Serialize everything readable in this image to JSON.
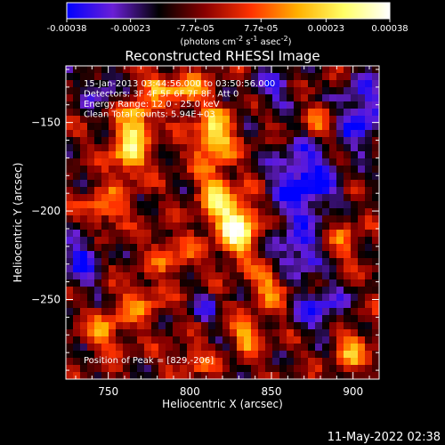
{
  "chart_data": {
    "type": "heatmap",
    "title": "Reconstructed RHESSI Image",
    "xlabel": "Heliocentric X (arcsec)",
    "ylabel": "Heliocentric Y (arcsec)",
    "xlim": [
      724,
      916
    ],
    "ylim": [
      -295,
      -118
    ],
    "x_ticks": [
      750,
      800,
      850,
      900
    ],
    "y_ticks": [
      -150,
      -200,
      -250
    ],
    "colorbar": {
      "ticks": [
        "-0.00038",
        "-0.00023",
        "-7.7e-05",
        "7.7e-05",
        "0.00023",
        "0.00038"
      ],
      "units": "(photons cm-2 s-1 asec-2)",
      "range": [
        -0.00038,
        0.00038
      ],
      "colormap": [
        "#0000ff",
        "#6a1fd6",
        "#000000",
        "#8a0000",
        "#ff3300",
        "#ffb000",
        "#ffff66",
        "#ffffff"
      ]
    },
    "info_lines": [
      "15-Jan-2013 03:44:56.000 to 03:50:56.000",
      "Detectors: 3F 4F 5F 6F 7F 8F, Att 0",
      "Energy Range: 12.0 - 25.0 keV",
      "Clean     Total counts: 5.94E+03"
    ],
    "peak_label": "Position of Peak = [829,-206]",
    "peak": {
      "x": 829,
      "y": -206,
      "value": 0.00038
    },
    "bright_features": [
      {
        "x": 829,
        "y": -208,
        "sx": 9,
        "sy": 12,
        "amp": 1.0
      },
      {
        "x": 815,
        "y": -158,
        "sx": 8,
        "sy": 10,
        "amp": 0.88
      },
      {
        "x": 768,
        "y": -148,
        "sx": 7,
        "sy": 8,
        "amp": 0.72
      },
      {
        "x": 762,
        "y": -168,
        "sx": 8,
        "sy": 10,
        "amp": 0.7
      },
      {
        "x": 815,
        "y": -190,
        "sx": 7,
        "sy": 10,
        "amp": 0.62
      },
      {
        "x": 798,
        "y": -132,
        "sx": 9,
        "sy": 7,
        "amp": 0.6
      },
      {
        "x": 780,
        "y": -128,
        "sx": 6,
        "sy": 5,
        "amp": 0.5
      },
      {
        "x": 850,
        "y": -242,
        "sx": 8,
        "sy": 8,
        "amp": 0.55
      },
      {
        "x": 835,
        "y": -270,
        "sx": 7,
        "sy": 7,
        "amp": 0.55
      },
      {
        "x": 745,
        "y": -200,
        "sx": 10,
        "sy": 9,
        "amp": 0.5
      },
      {
        "x": 770,
        "y": -252,
        "sx": 9,
        "sy": 8,
        "amp": 0.45
      },
      {
        "x": 790,
        "y": -225,
        "sx": 9,
        "sy": 9,
        "amp": 0.4
      },
      {
        "x": 748,
        "y": -268,
        "sx": 8,
        "sy": 9,
        "amp": 0.45
      },
      {
        "x": 900,
        "y": -278,
        "sx": 8,
        "sy": 8,
        "amp": 0.5
      },
      {
        "x": 880,
        "y": -150,
        "sx": 7,
        "sy": 8,
        "amp": 0.4
      },
      {
        "x": 895,
        "y": -215,
        "sx": 8,
        "sy": 10,
        "amp": 0.35
      },
      {
        "x": 800,
        "y": -285,
        "sx": 9,
        "sy": 6,
        "amp": 0.35
      }
    ],
    "negative_regions": [
      {
        "x": 870,
        "y": -185,
        "sx": 14,
        "sy": 16,
        "amp": 0.6
      },
      {
        "x": 905,
        "y": -145,
        "sx": 10,
        "sy": 14,
        "amp": 0.5
      },
      {
        "x": 850,
        "y": -130,
        "sx": 10,
        "sy": 8,
        "amp": 0.35
      },
      {
        "x": 865,
        "y": -225,
        "sx": 10,
        "sy": 10,
        "amp": 0.45
      },
      {
        "x": 735,
        "y": -225,
        "sx": 8,
        "sy": 14,
        "amp": 0.45
      },
      {
        "x": 745,
        "y": -130,
        "sx": 8,
        "sy": 10,
        "amp": 0.3
      },
      {
        "x": 880,
        "y": -255,
        "sx": 10,
        "sy": 10,
        "amp": 0.45
      },
      {
        "x": 810,
        "y": -255,
        "sx": 6,
        "sy": 6,
        "amp": 0.3
      }
    ],
    "grid": false
  },
  "footer": {
    "timestamp": "11-May-2022 02:38"
  }
}
